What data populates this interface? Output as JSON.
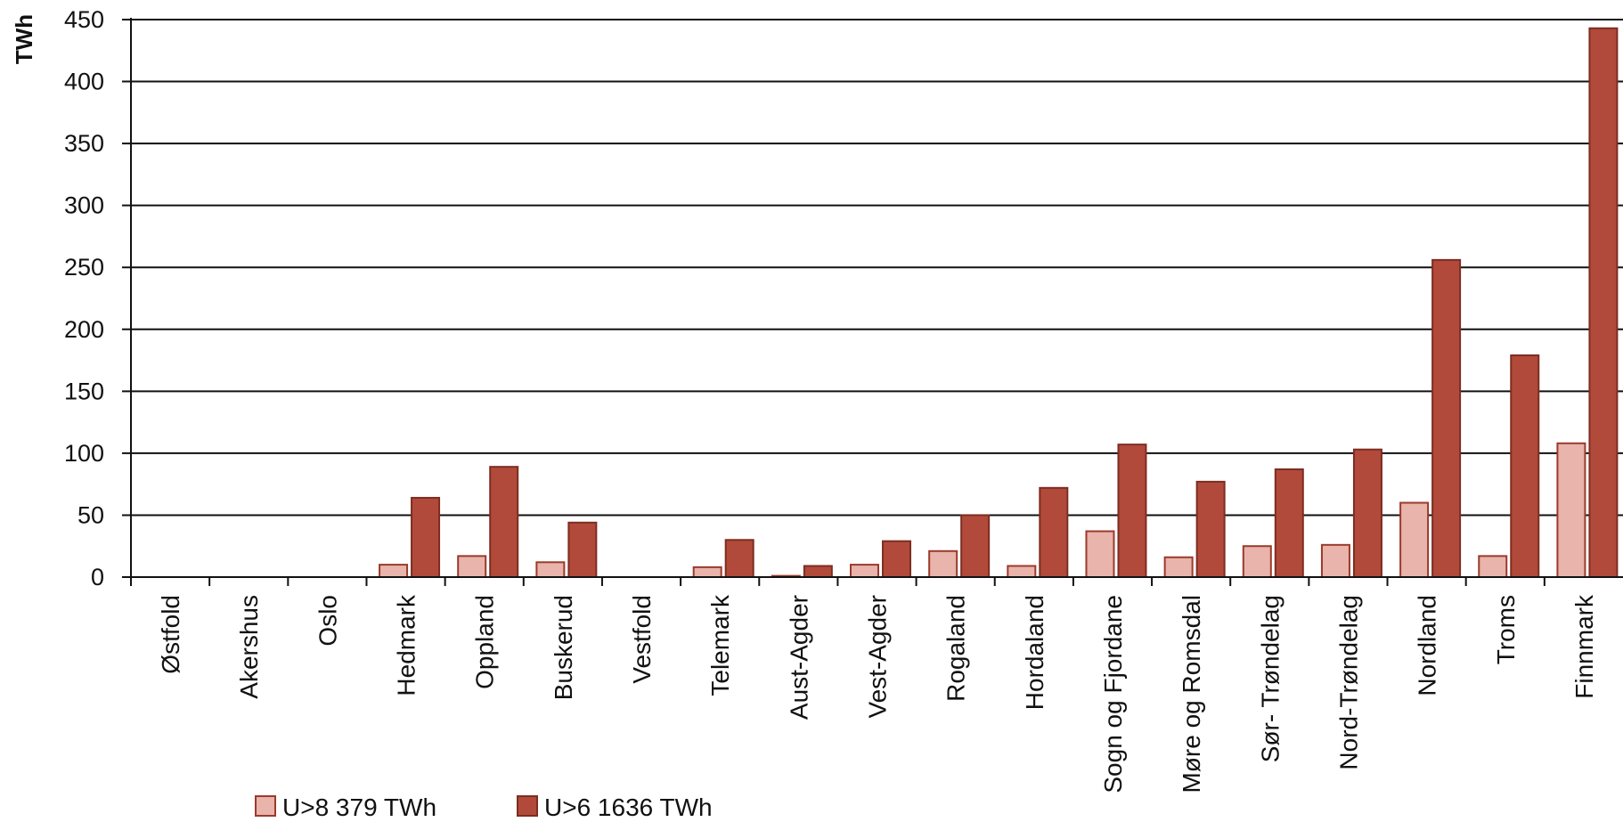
{
  "chart_data": {
    "type": "bar",
    "ylabel": "TWh",
    "xlabel": "",
    "ylim": [
      0,
      450
    ],
    "yticks": [
      0,
      50,
      100,
      150,
      200,
      250,
      300,
      350,
      400,
      450
    ],
    "grid": true,
    "legend_position": "bottom-left",
    "categories": [
      "Østfold",
      "Akershus",
      "Oslo",
      "Hedmark",
      "Oppland",
      "Buskerud",
      "Vestfold",
      "Telemark",
      "Aust-Agder",
      "Vest-Agder",
      "Rogaland",
      "Hordaland",
      "Sogn og Fjordane",
      "Møre og Romsdal",
      "Sør- Trøndelag",
      "Nord-Trøndelag",
      "Nordland",
      "Troms",
      "Finnmark"
    ],
    "series": [
      {
        "name": "U>8 379 TWh",
        "color": "#e8b4ab",
        "stroke": "#9b3a2c",
        "values": [
          0,
          0,
          0,
          10,
          17,
          12,
          0,
          8,
          1,
          10,
          21,
          9,
          37,
          16,
          25,
          26,
          60,
          17,
          108
        ]
      },
      {
        "name": "U>6 1636 TWh",
        "color": "#b14a3a",
        "stroke": "#7d2d22",
        "values": [
          0,
          0,
          0,
          64,
          89,
          44,
          0,
          30,
          9,
          29,
          50,
          72,
          107,
          77,
          87,
          103,
          256,
          179,
          443
        ]
      }
    ]
  }
}
